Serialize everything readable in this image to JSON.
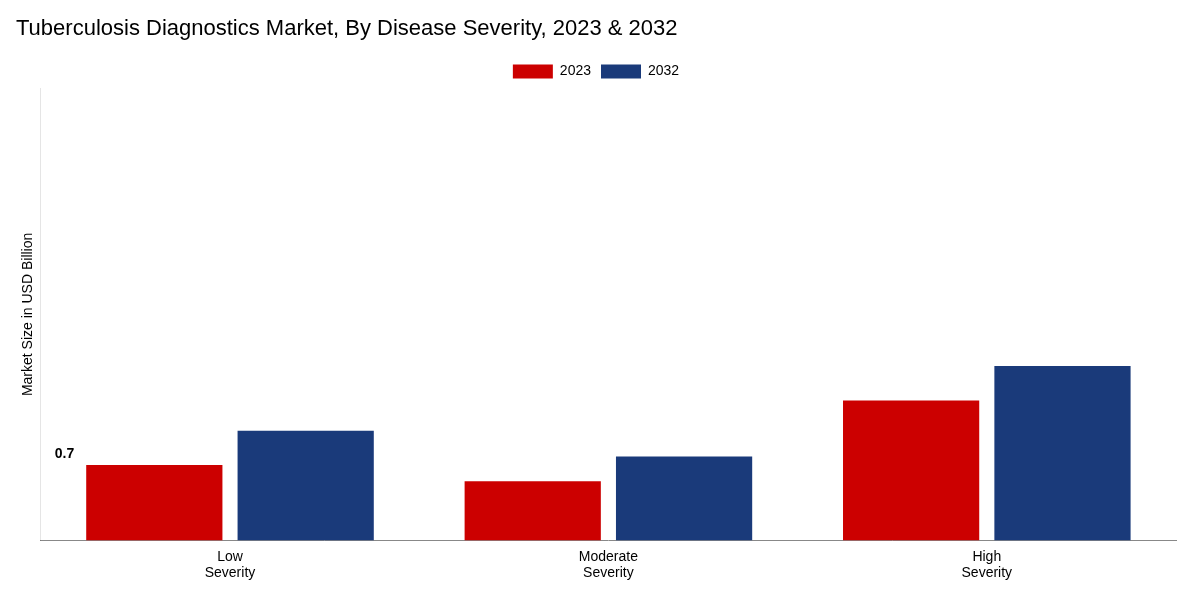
{
  "chart_data": {
    "type": "bar",
    "title": "Tuberculosis Diagnostics Market, By Disease Severity, 2023 & 2032",
    "ylabel": "Market Size in USD Billion",
    "categories": [
      "Low\nSeverity",
      "Moderate\nSeverity",
      "High\nSeverity"
    ],
    "series": [
      {
        "name": "2023",
        "color": "#cc0000",
        "values": [
          0.7,
          0.55,
          1.3
        ]
      },
      {
        "name": "2032",
        "color": "#1a3a7a",
        "values": [
          1.02,
          0.78,
          1.62
        ]
      }
    ],
    "ylim": [
      0,
      4.2
    ],
    "yticks": [],
    "tick_labels": "x",
    "grid": false,
    "legend": "top",
    "annotations": [
      {
        "text": "0.7",
        "series": "2023",
        "x": "Low\nSeverity",
        "y": 0.7
      }
    ]
  }
}
